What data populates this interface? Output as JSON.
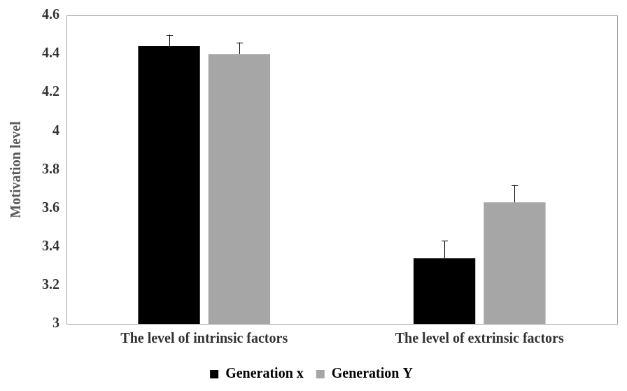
{
  "chart_data": {
    "type": "bar",
    "y_label": "Motivation level",
    "categories": [
      "The level of intrinsic factors",
      "The level of extrinsic factors"
    ],
    "series": [
      {
        "name": "Generation x",
        "color": "#000000",
        "values": [
          4.44,
          3.34
        ],
        "errors": [
          0.06,
          0.09
        ]
      },
      {
        "name": "Generation Y",
        "color": "#a6a6a6",
        "values": [
          4.4,
          3.63
        ],
        "errors": [
          0.06,
          0.09
        ]
      }
    ],
    "ylim": [
      3,
      4.6
    ],
    "yticks": [
      3,
      3.2,
      3.4,
      3.6,
      3.8,
      4,
      4.2,
      4.4,
      4.6
    ],
    "grid": false,
    "legend": "bottom"
  }
}
